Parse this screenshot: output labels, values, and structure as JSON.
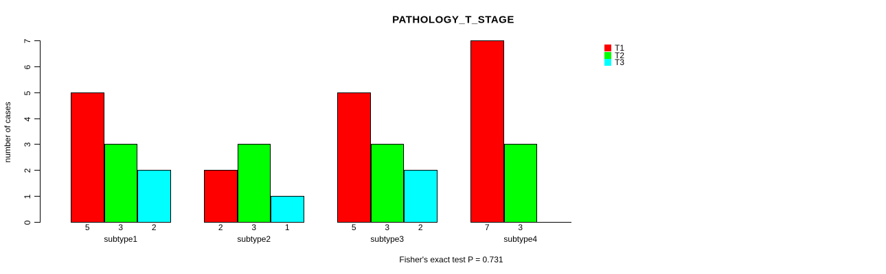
{
  "title": "PATHOLOGY_T_STAGE",
  "footnote": "Fisher's exact test P = 0.731",
  "colors": {
    "t1": "#ff0000",
    "t2": "#00ff00",
    "t3": "#00ffff",
    "axis": "#000000"
  },
  "legend": {
    "position": "top-right",
    "items": [
      {
        "label": "T1",
        "color": "#ff0000"
      },
      {
        "label": "T2",
        "color": "#00ff00"
      },
      {
        "label": "T3",
        "color": "#00ffff"
      }
    ]
  },
  "chart_data": {
    "type": "bar",
    "title": "PATHOLOGY_T_STAGE",
    "xlabel": "",
    "ylabel": "number of cases",
    "categories": [
      "subtype1",
      "subtype2",
      "subtype3",
      "subtype4"
    ],
    "series": [
      {
        "name": "T1",
        "color": "#ff0000",
        "values": [
          5,
          2,
          5,
          7
        ]
      },
      {
        "name": "T2",
        "color": "#00ff00",
        "values": [
          3,
          3,
          3,
          3
        ]
      },
      {
        "name": "T3",
        "color": "#00ffff",
        "values": [
          2,
          1,
          2,
          0
        ]
      }
    ],
    "bar_value_labels": [
      [
        "5",
        "3",
        "2"
      ],
      [
        "2",
        "3",
        "1"
      ],
      [
        "5",
        "3",
        "2"
      ],
      [
        "7",
        "3",
        ""
      ]
    ],
    "ylim": [
      0,
      7
    ],
    "yticks": [
      0,
      1,
      2,
      3,
      4,
      5,
      6,
      7
    ],
    "grid": false,
    "legend_position": "top-right",
    "annotation": "Fisher's exact test P = 0.731"
  }
}
